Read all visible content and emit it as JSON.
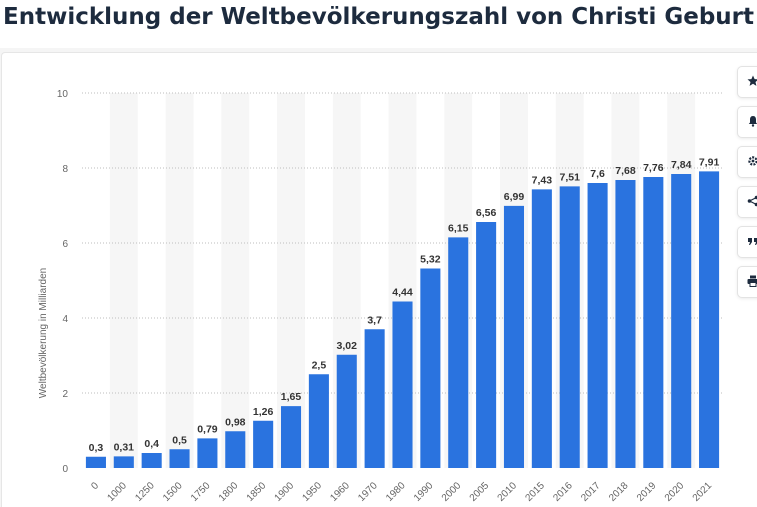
{
  "page": {
    "title": "Entwicklung der Weltbevölkerungszahl von Christi Geburt"
  },
  "colors": {
    "bar": "#2a73df",
    "title": "#1d2b3e",
    "label": "#333333",
    "axis_text": "#666666",
    "band": "#f6f6f6"
  },
  "toolbar": {
    "icons": [
      "star-icon",
      "bell-icon",
      "gear-icon",
      "share-icon",
      "quote-icon",
      "print-icon"
    ]
  },
  "chart_data": {
    "type": "bar",
    "title": "Entwicklung der Weltbevölkerungszahl von Christi Geburt",
    "xlabel": "",
    "ylabel": "Weltbevölkerung in Milliarden",
    "ylim": [
      0,
      10
    ],
    "yticks": [
      0,
      2,
      4,
      6,
      8,
      10
    ],
    "grid": true,
    "categories": [
      "0",
      "1000",
      "1250",
      "1500",
      "1750",
      "1800",
      "1850",
      "1900",
      "1950",
      "1960",
      "1970",
      "1980",
      "1990",
      "2000",
      "2005",
      "2010",
      "2015",
      "2016",
      "2017",
      "2018",
      "2019",
      "2020",
      "2021"
    ],
    "values": [
      0.3,
      0.31,
      0.4,
      0.5,
      0.79,
      0.98,
      1.26,
      1.65,
      2.5,
      3.02,
      3.7,
      4.44,
      5.32,
      6.15,
      6.56,
      6.99,
      7.43,
      7.51,
      7.6,
      7.68,
      7.76,
      7.84,
      7.91
    ],
    "value_labels": [
      "0,3",
      "0,31",
      "0,4",
      "0,5",
      "0,79",
      "0,98",
      "1,26",
      "1,65",
      "2,5",
      "3,02",
      "3,7",
      "4,44",
      "5,32",
      "6,15",
      "6,56",
      "6,99",
      "7,43",
      "7,51",
      "7,6",
      "7,68",
      "7,76",
      "7,84",
      "7,91"
    ]
  }
}
